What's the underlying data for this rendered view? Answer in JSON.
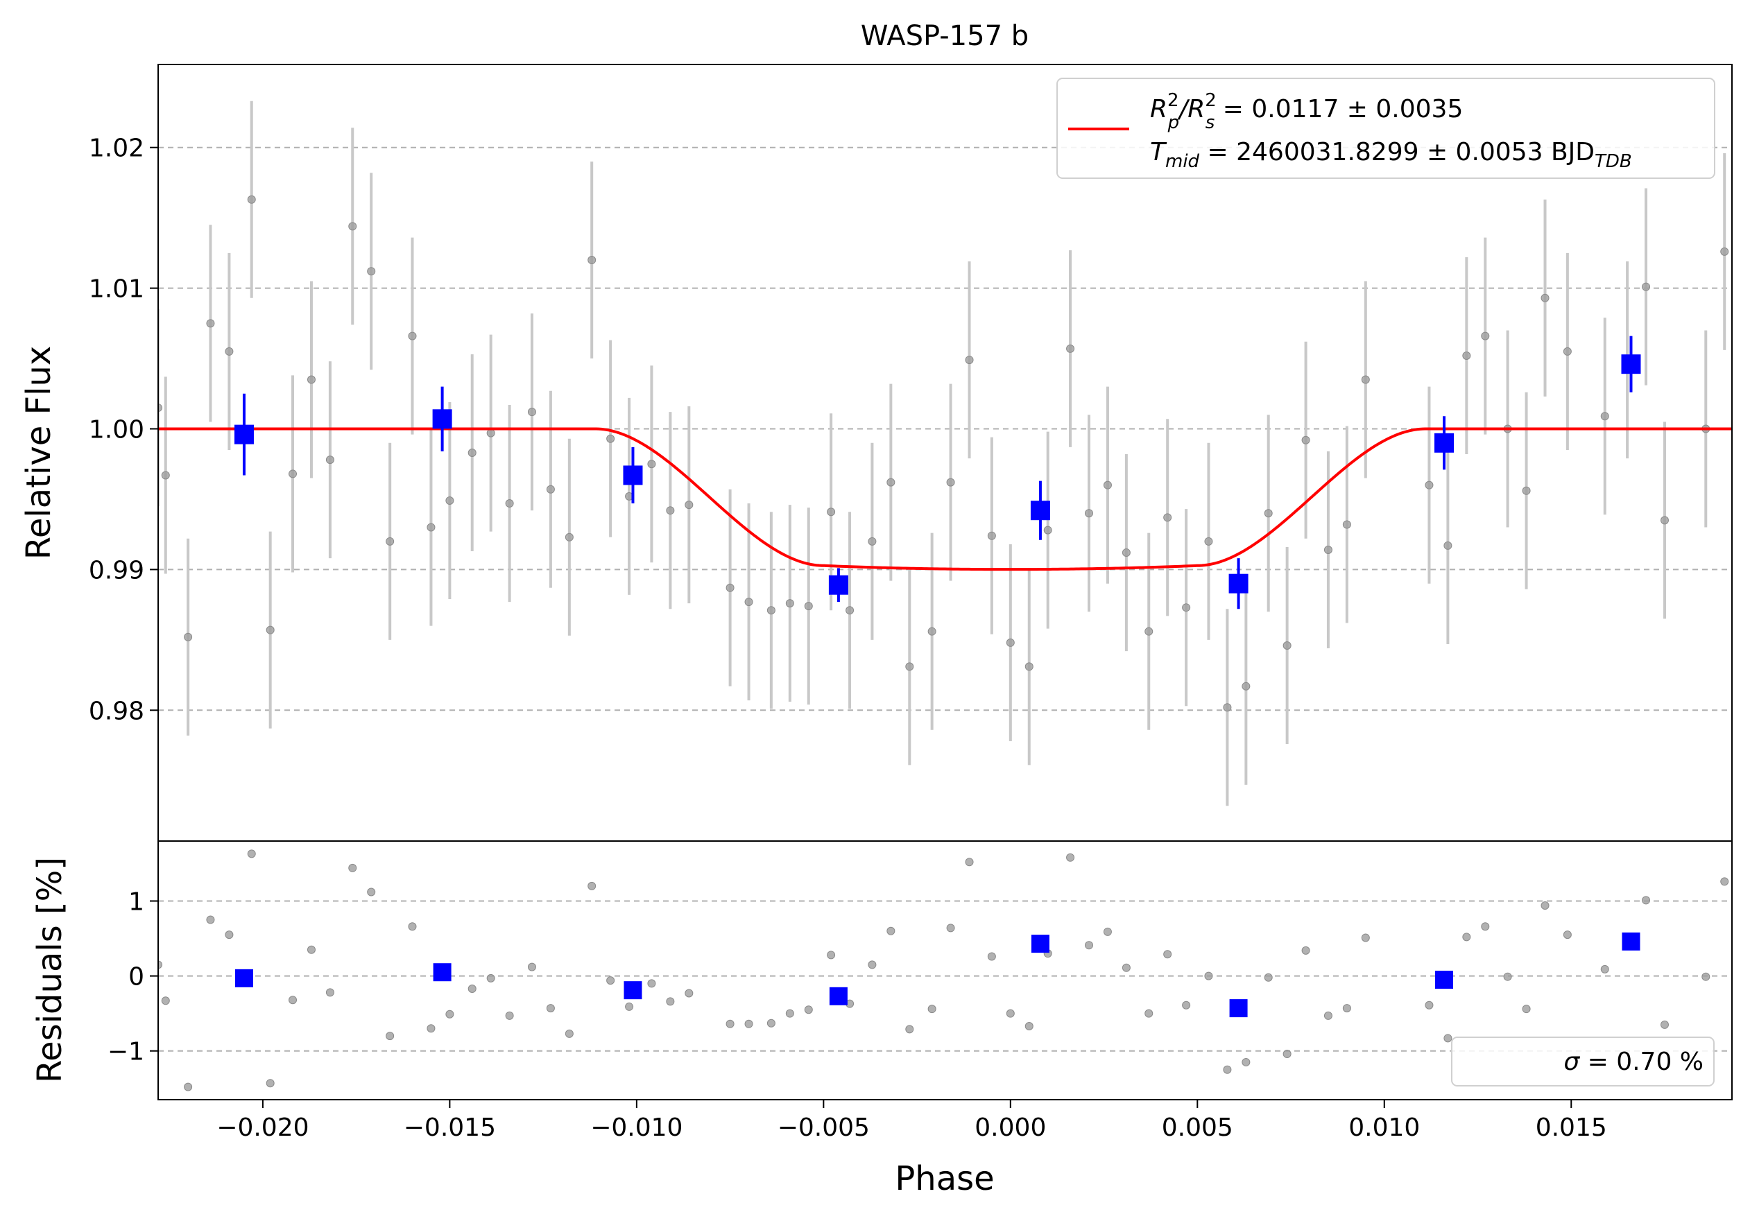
{
  "title": "WASP-157 b",
  "colors": {
    "raw_points": "#9e9e9e",
    "raw_errorbars": "#c8c8c8",
    "binned": "#0000ff",
    "model": "#ff0000",
    "grid": "#b0b0b0",
    "legend_border": "#d0d0d0"
  },
  "legend_top": {
    "placement": "upper right",
    "line1_main": "R",
    "line1_sup1": "2",
    "line1_sub1": "p",
    "line1_mid": "/R",
    "line1_sup2": "2",
    "line1_sub2": "s",
    "line1_value": " = 0.0117 ± 0.0035",
    "line2_main": "T",
    "line2_sub": "mid",
    "line2_value": " = 2460031.8299 ± 0.0053 BJD",
    "line2_unit_sub": "TDB"
  },
  "legend_bottom": {
    "placement": "lower right",
    "symbol": "σ",
    "text": " = 0.70 %"
  },
  "chart_data": [
    {
      "panel": "flux",
      "type": "scatter",
      "title": "WASP-157 b",
      "ylabel": "Relative Flux",
      "xlim": [
        -0.0228,
        0.0193
      ],
      "ylim": [
        0.9707,
        1.0259
      ],
      "yticks": [
        0.98,
        0.99,
        1.0,
        1.01,
        1.02
      ],
      "ytick_labels": [
        "0.98",
        "0.99",
        "1.00",
        "1.01",
        "1.02"
      ],
      "grid": "y dashed",
      "raw_points": {
        "x": [
          -0.0228,
          -0.0226,
          -0.022,
          -0.0214,
          -0.0209,
          -0.0203,
          -0.0198,
          -0.0192,
          -0.0187,
          -0.0182,
          -0.0176,
          -0.0171,
          -0.0166,
          -0.016,
          -0.0155,
          -0.015,
          -0.0144,
          -0.0139,
          -0.0134,
          -0.0128,
          -0.0123,
          -0.0118,
          -0.0112,
          -0.0107,
          -0.0102,
          -0.0096,
          -0.0091,
          -0.0086,
          -0.0075,
          -0.007,
          -0.0064,
          -0.0059,
          -0.0054,
          -0.0048,
          -0.0043,
          -0.0037,
          -0.0032,
          -0.0027,
          -0.0021,
          -0.0016,
          -0.0011,
          -0.0005,
          0.0,
          0.0005,
          0.001,
          0.0016,
          0.0021,
          0.0026,
          0.0031,
          0.0037,
          0.0042,
          0.0047,
          0.0053,
          0.0058,
          0.0063,
          0.0069,
          0.0074,
          0.0079,
          0.0085,
          0.009,
          0.0095,
          0.0112,
          0.0117,
          0.0122,
          0.0127,
          0.0133,
          0.0138,
          0.0143,
          0.0149,
          0.0159,
          0.0165,
          0.017,
          0.0175,
          0.0186,
          0.0191
        ],
        "y": [
          1.0015,
          0.9967,
          0.9852,
          1.0075,
          1.0055,
          1.0163,
          0.9857,
          0.9968,
          1.0035,
          0.9978,
          1.0144,
          1.0112,
          0.992,
          1.0066,
          0.993,
          0.9949,
          0.9983,
          0.9997,
          0.9947,
          1.0012,
          0.9957,
          0.9923,
          1.012,
          0.9993,
          0.9952,
          0.9975,
          0.9942,
          0.9946,
          0.9887,
          0.9877,
          0.9871,
          0.9876,
          0.9874,
          0.9941,
          0.9871,
          0.992,
          0.9962,
          0.9831,
          0.9856,
          0.9962,
          1.0049,
          0.9924,
          0.9848,
          0.9831,
          0.9928,
          1.0057,
          0.994,
          0.996,
          0.9912,
          0.9856,
          0.9937,
          0.9873,
          0.992,
          0.9802,
          0.9817,
          0.994,
          0.9846,
          0.9992,
          0.9914,
          0.9932,
          1.0035,
          0.996,
          0.9917,
          1.0052,
          1.0066,
          1.0,
          0.9956,
          1.0093,
          1.0055,
          1.0009,
          1.0049,
          1.0101,
          0.9935,
          1.0,
          1.0126
        ],
        "yerr": [
          0.007,
          0.007,
          0.007,
          0.007,
          0.007,
          0.007,
          0.007,
          0.007,
          0.007,
          0.007,
          0.007,
          0.007,
          0.007,
          0.007,
          0.007,
          0.007,
          0.007,
          0.007,
          0.007,
          0.007,
          0.007,
          0.007,
          0.007,
          0.007,
          0.007,
          0.007,
          0.007,
          0.007,
          0.007,
          0.007,
          0.007,
          0.007,
          0.007,
          0.007,
          0.007,
          0.007,
          0.007,
          0.007,
          0.007,
          0.007,
          0.007,
          0.007,
          0.007,
          0.007,
          0.007,
          0.007,
          0.007,
          0.007,
          0.007,
          0.007,
          0.007,
          0.007,
          0.007,
          0.007,
          0.007,
          0.007,
          0.007,
          0.007,
          0.007,
          0.007,
          0.007,
          0.007,
          0.007,
          0.007,
          0.007,
          0.007,
          0.007,
          0.007,
          0.007,
          0.007,
          0.007,
          0.007,
          0.007,
          0.007,
          0.007
        ]
      },
      "binned": {
        "x": [
          -0.0205,
          -0.0152,
          -0.0101,
          -0.0046,
          0.0008,
          0.0061,
          0.0116,
          0.0166
        ],
        "y": [
          0.9996,
          1.0007,
          0.9967,
          0.9889,
          0.9942,
          0.989,
          0.999,
          1.0046
        ],
        "yerr": [
          0.0029,
          0.0023,
          0.002,
          0.0012,
          0.0021,
          0.0018,
          0.0019,
          0.002
        ]
      },
      "model": {
        "name": "transit model",
        "t_center": 0.0,
        "t_ingress_start": -0.0111,
        "t_ingress_end": -0.005,
        "depth": 0.0101,
        "limb_darkening": 0.25
      }
    },
    {
      "panel": "residuals",
      "type": "scatter",
      "xlabel": "Phase",
      "ylabel": "Residuals [%]",
      "xlim": [
        -0.0228,
        0.0193
      ],
      "ylim": [
        -1.65,
        1.8
      ],
      "yticks": [
        -1,
        0,
        1
      ],
      "ytick_labels": [
        "−1",
        "0",
        "1"
      ],
      "xticks": [
        -0.02,
        -0.015,
        -0.01,
        -0.005,
        0.0,
        0.005,
        0.01,
        0.015
      ],
      "xtick_labels": [
        "−0.020",
        "−0.015",
        "−0.010",
        "−0.005",
        "0.000",
        "0.005",
        "0.010",
        "0.015"
      ],
      "grid": "y dashed",
      "raw_points": {
        "x": [
          -0.0228,
          -0.0226,
          -0.022,
          -0.0214,
          -0.0209,
          -0.0203,
          -0.0198,
          -0.0192,
          -0.0187,
          -0.0182,
          -0.0176,
          -0.0171,
          -0.0166,
          -0.016,
          -0.0155,
          -0.015,
          -0.0144,
          -0.0139,
          -0.0134,
          -0.0128,
          -0.0123,
          -0.0118,
          -0.0112,
          -0.0107,
          -0.0102,
          -0.0096,
          -0.0091,
          -0.0086,
          -0.0075,
          -0.007,
          -0.0064,
          -0.0059,
          -0.0054,
          -0.0048,
          -0.0043,
          -0.0037,
          -0.0032,
          -0.0027,
          -0.0021,
          -0.0016,
          -0.0011,
          -0.0005,
          0.0,
          0.0005,
          0.001,
          0.0016,
          0.0021,
          0.0026,
          0.0031,
          0.0037,
          0.0042,
          0.0047,
          0.0053,
          0.0058,
          0.0063,
          0.0069,
          0.0074,
          0.0079,
          0.0085,
          0.009,
          0.0095,
          0.0112,
          0.0117,
          0.0122,
          0.0127,
          0.0133,
          0.0138,
          0.0143,
          0.0149,
          0.0159,
          0.0165,
          0.017,
          0.0175,
          0.0186,
          0.0191
        ],
        "y": [
          0.15,
          -0.33,
          -1.48,
          0.75,
          0.55,
          1.63,
          -1.43,
          -0.32,
          0.35,
          -0.22,
          1.44,
          1.12,
          -0.8,
          0.66,
          -0.7,
          -0.51,
          -0.17,
          -0.03,
          -0.53,
          0.12,
          -0.43,
          -0.77,
          1.2,
          -0.06,
          -0.41,
          -0.1,
          -0.34,
          -0.23,
          -0.64,
          -0.64,
          -0.63,
          -0.5,
          -0.45,
          0.28,
          -0.37,
          0.15,
          0.6,
          -0.71,
          -0.44,
          0.64,
          1.52,
          0.26,
          -0.5,
          -0.67,
          0.3,
          1.58,
          0.41,
          0.59,
          0.11,
          -0.5,
          0.29,
          -0.39,
          0.0,
          -1.25,
          -1.15,
          -0.02,
          -1.04,
          0.34,
          -0.53,
          -0.43,
          0.51,
          -0.39,
          -0.83,
          0.52,
          0.66,
          -0.01,
          -0.44,
          0.94,
          0.55,
          0.09,
          0.49,
          1.01,
          -0.65,
          -0.01,
          1.26
        ]
      },
      "binned": {
        "x": [
          -0.0205,
          -0.0152,
          -0.0101,
          -0.0046,
          0.0008,
          0.0061,
          0.0116,
          0.0166
        ],
        "y": [
          -0.03,
          0.05,
          -0.19,
          -0.27,
          0.43,
          -0.43,
          -0.05,
          0.46
        ]
      },
      "legend_text": "σ = 0.70 %"
    }
  ]
}
